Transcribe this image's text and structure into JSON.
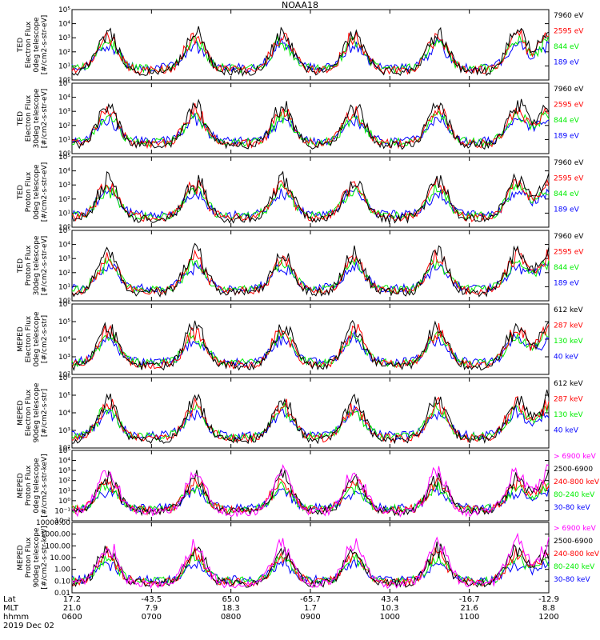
{
  "title": "NOAA18",
  "date_label": "2019 Dec 02",
  "footer": {
    "row_labels": [
      "Lat",
      "MLT",
      "hhmm"
    ],
    "ticks": [
      {
        "lat": "17.2",
        "mlt": "21.0",
        "hhmm": "0600"
      },
      {
        "lat": "-43.5",
        "mlt": "7.9",
        "hhmm": "0700"
      },
      {
        "lat": "65.0",
        "mlt": "18.3",
        "hhmm": "0800"
      },
      {
        "lat": "-65.7",
        "mlt": "1.7",
        "hhmm": "0900"
      },
      {
        "lat": "43.4",
        "mlt": "10.3",
        "hhmm": "1000"
      },
      {
        "lat": "-16.7",
        "mlt": "21.6",
        "hhmm": "1100"
      },
      {
        "lat": "-12.9",
        "mlt": "8.8",
        "hhmm": "1200"
      }
    ]
  },
  "colors": {
    "blue": "#0000ff",
    "red": "#ff0000",
    "green": "#00ee00",
    "black": "#000000",
    "magenta": "#ff00ff"
  },
  "chart_data": [
    {
      "type": "line",
      "ylabel": [
        "TED",
        "Electron Flux",
        "0deg telescope",
        "[#/cm2-s-str-eV]"
      ],
      "log": true,
      "ylim": [
        1,
        100000
      ],
      "y_ticks": [
        "10⁰",
        "10¹",
        "10²",
        "10³",
        "10⁴",
        "10⁵"
      ],
      "x": [
        "0600",
        "0700",
        "0800",
        "0900",
        "1000",
        "1100",
        "1200"
      ],
      "series": [
        {
          "name": "7960 eV",
          "color": "black"
        },
        {
          "name": "2595 eV",
          "color": "red"
        },
        {
          "name": "844 eV",
          "color": "green"
        },
        {
          "name": "189 eV",
          "color": "blue"
        }
      ]
    },
    {
      "type": "line",
      "ylabel": [
        "TED",
        "Electron Flux",
        "30deg telescope",
        "[#/cm2-s-str-eV]"
      ],
      "log": true,
      "ylim": [
        1,
        100000
      ],
      "y_ticks": [
        "10⁰",
        "10¹",
        "10²",
        "10³",
        "10⁴",
        "10⁵"
      ],
      "x": [
        "0600",
        "0700",
        "0800",
        "0900",
        "1000",
        "1100",
        "1200"
      ],
      "series": [
        {
          "name": "7960 eV",
          "color": "black"
        },
        {
          "name": "2595 eV",
          "color": "red"
        },
        {
          "name": "844 eV",
          "color": "green"
        },
        {
          "name": "189 eV",
          "color": "blue"
        }
      ]
    },
    {
      "type": "line",
      "ylabel": [
        "TED",
        "Proton Flux",
        "0deg telescope",
        "[#/cm2-s-str-eV]"
      ],
      "log": true,
      "ylim": [
        1,
        100000
      ],
      "y_ticks": [
        "10⁰",
        "10¹",
        "10²",
        "10³",
        "10⁴",
        "10⁵"
      ],
      "x": [
        "0600",
        "0700",
        "0800",
        "0900",
        "1000",
        "1100",
        "1200"
      ],
      "series": [
        {
          "name": "7960 eV",
          "color": "black"
        },
        {
          "name": "2595 eV",
          "color": "red"
        },
        {
          "name": "844 eV",
          "color": "green"
        },
        {
          "name": "189 eV",
          "color": "blue"
        }
      ]
    },
    {
      "type": "line",
      "ylabel": [
        "TED",
        "Proton Flux",
        "30deg telescope",
        "[#/cm2-s-str-eV]"
      ],
      "log": true,
      "ylim": [
        1,
        100000
      ],
      "y_ticks": [
        "10⁰",
        "10¹",
        "10²",
        "10³",
        "10⁴",
        "10⁵"
      ],
      "x": [
        "0600",
        "0700",
        "0800",
        "0900",
        "1000",
        "1100",
        "1200"
      ],
      "series": [
        {
          "name": "7960 eV",
          "color": "black"
        },
        {
          "name": "2595 eV",
          "color": "red"
        },
        {
          "name": "844 eV",
          "color": "green"
        },
        {
          "name": "189 eV",
          "color": "blue"
        }
      ]
    },
    {
      "type": "line",
      "ylabel": [
        "MEPED",
        "Electron Flux",
        "0deg telescope",
        "[#/cm2-s-str]"
      ],
      "log": true,
      "ylim": [
        100,
        1000000
      ],
      "y_ticks": [
        "10²",
        "10³",
        "10⁴",
        "10⁵",
        "10⁶"
      ],
      "x": [
        "0600",
        "0700",
        "0800",
        "0900",
        "1000",
        "1100",
        "1200"
      ],
      "series": [
        {
          "name": "612 keV",
          "color": "black"
        },
        {
          "name": "287 keV",
          "color": "red"
        },
        {
          "name": "130 keV",
          "color": "green"
        },
        {
          "name": "40 keV",
          "color": "blue"
        }
      ]
    },
    {
      "type": "line",
      "ylabel": [
        "MEPED",
        "Electron Flux",
        "90deg telescope",
        "[#/cm2-s-str]"
      ],
      "log": true,
      "ylim": [
        100,
        1000000
      ],
      "y_ticks": [
        "10²",
        "10³",
        "10⁴",
        "10⁵",
        "10⁶"
      ],
      "x": [
        "0600",
        "0700",
        "0800",
        "0900",
        "1000",
        "1100",
        "1200"
      ],
      "series": [
        {
          "name": "612 keV",
          "color": "black"
        },
        {
          "name": "287 keV",
          "color": "red"
        },
        {
          "name": "130 keV",
          "color": "green"
        },
        {
          "name": "40 keV",
          "color": "blue"
        }
      ]
    },
    {
      "type": "line",
      "ylabel": [
        "MEPED",
        "Proton Flux",
        "0deg telescope",
        "[#/cm2-s-str-keV]"
      ],
      "log": true,
      "ylim": [
        0.01,
        100000
      ],
      "y_ticks": [
        "10⁻²",
        "10⁻¹",
        "10⁰",
        "10¹",
        "10²",
        "10³",
        "10⁴",
        "10⁵"
      ],
      "x": [
        "0600",
        "0700",
        "0800",
        "0900",
        "1000",
        "1100",
        "1200"
      ],
      "series": [
        {
          "name": "> 6900 keV",
          "color": "magenta"
        },
        {
          "name": "2500-6900",
          "color": "black"
        },
        {
          "name": "240-800 keV",
          "color": "red"
        },
        {
          "name": "80-240 keV",
          "color": "green"
        },
        {
          "name": "30-80 keV",
          "color": "blue"
        }
      ]
    },
    {
      "type": "line",
      "ylabel": [
        "MEPED",
        "Proton Flux",
        "90deg telescope",
        "[#/cm2-s-str-keV]"
      ],
      "log": true,
      "ylim": [
        0.01,
        10000
      ],
      "y_ticks": [
        "0.01",
        "0.10",
        "1.00",
        "10.00",
        "100.00",
        "1000.00",
        "10000.00"
      ],
      "x": [
        "0600",
        "0700",
        "0800",
        "0900",
        "1000",
        "1100",
        "1200"
      ],
      "series": [
        {
          "name": "> 6900 keV",
          "color": "magenta"
        },
        {
          "name": "2500-6900",
          "color": "black"
        },
        {
          "name": "240-800 keV",
          "color": "red"
        },
        {
          "name": "80-240 keV",
          "color": "green"
        },
        {
          "name": "30-80 keV",
          "color": "blue"
        }
      ]
    }
  ]
}
